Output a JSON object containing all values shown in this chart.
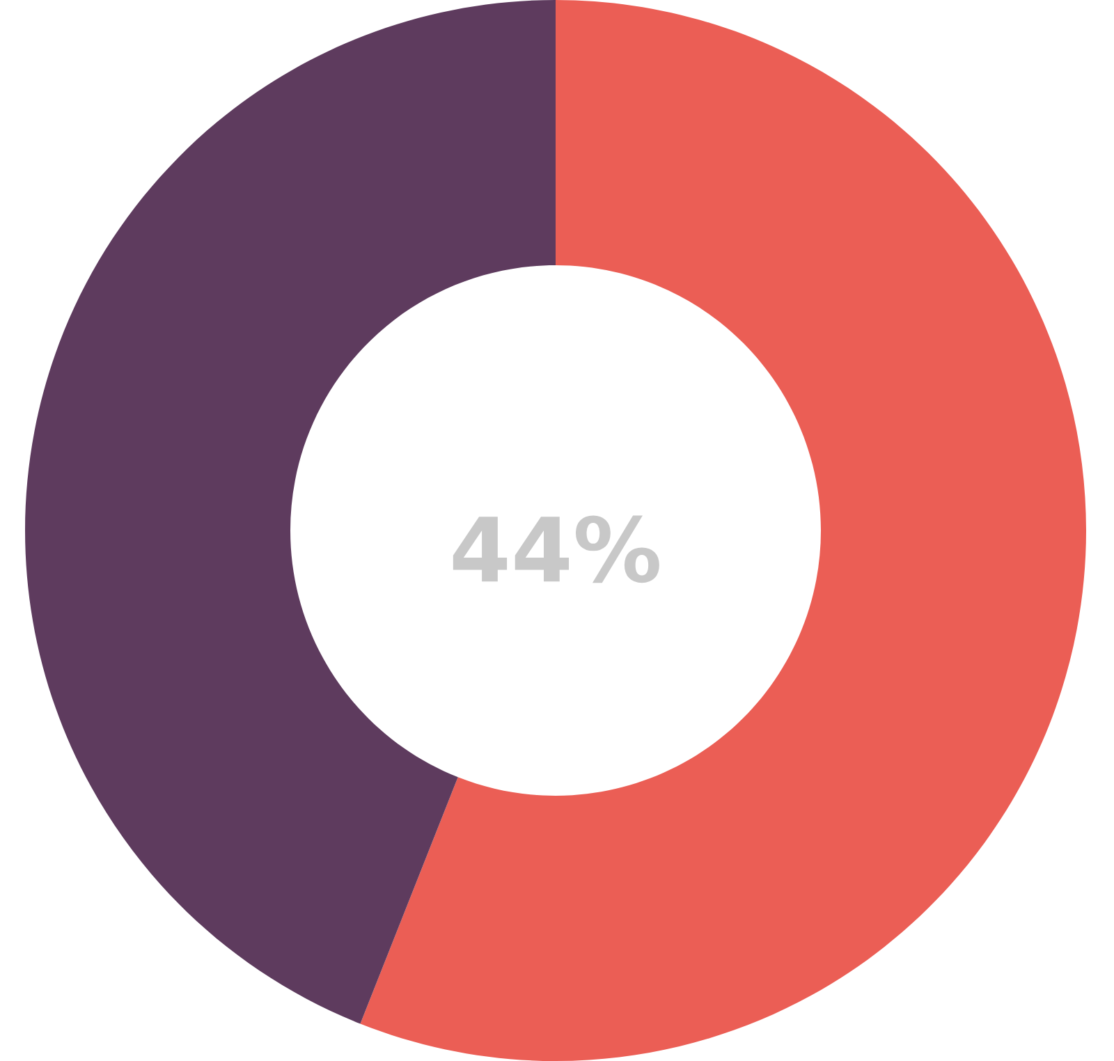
{
  "chart_data": {
    "type": "donut",
    "categories": [
      null,
      null
    ],
    "values": [
      56,
      44
    ],
    "colors": [
      "#eb5e55",
      "#5e3b5e"
    ],
    "annotations": [
      "44%"
    ]
  }
}
